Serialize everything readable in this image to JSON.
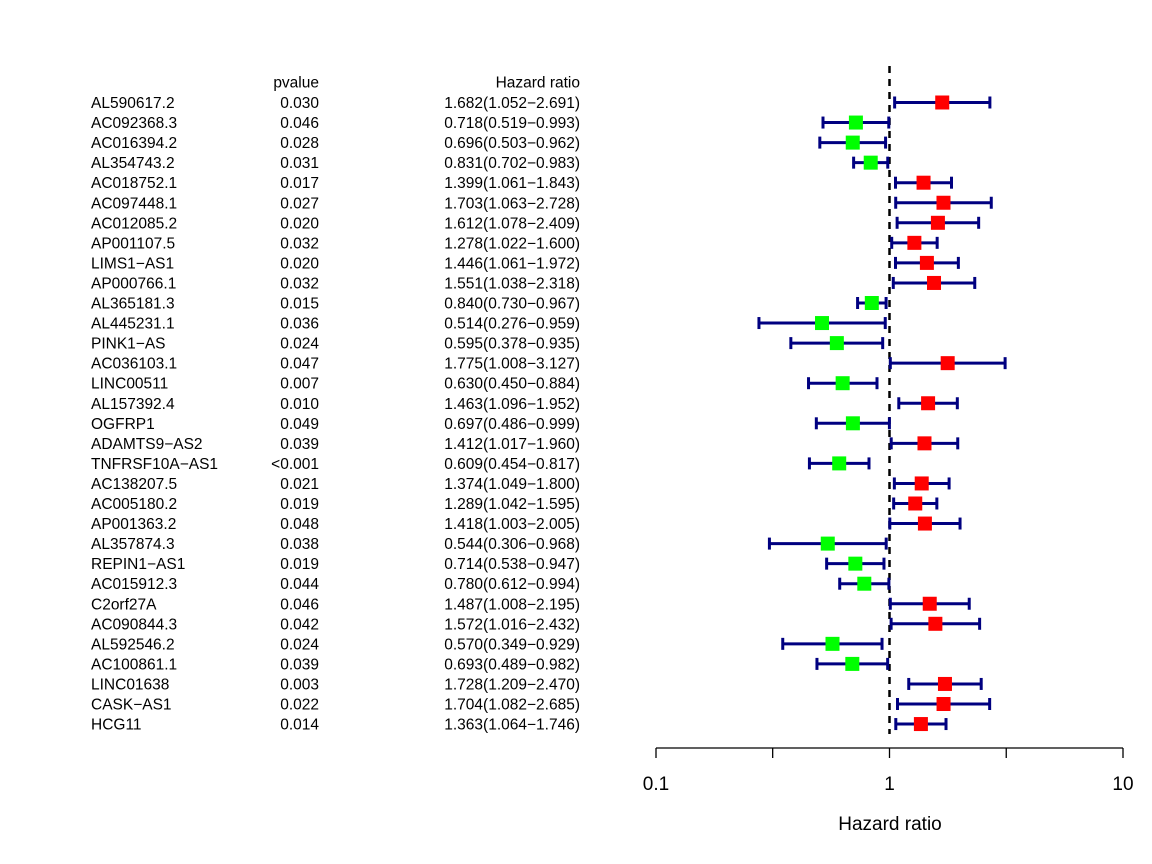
{
  "chart_data": {
    "type": "forest",
    "xscale": "log10",
    "xlim": [
      0.1,
      10
    ],
    "xlabel": "Hazard ratio",
    "reference_line": 1,
    "header": {
      "pvalue": "pvalue",
      "hr": "Hazard ratio"
    },
    "xticks": [
      {
        "value": 0.1,
        "label": "0.1"
      },
      {
        "value": 0.316,
        "label": ""
      },
      {
        "value": 1,
        "label": "1"
      },
      {
        "value": 3.162,
        "label": ""
      },
      {
        "value": 10,
        "label": "10"
      }
    ],
    "colors": {
      "risk": "#ff0000",
      "protective": "#00ff00",
      "ci": "#000080"
    },
    "rows": [
      {
        "gene": "AL590617.2",
        "pvalue": "0.030",
        "hr_text": "1.682(1.052−2.691)",
        "hr": 1.682,
        "low": 1.052,
        "high": 2.691
      },
      {
        "gene": "AC092368.3",
        "pvalue": "0.046",
        "hr_text": "0.718(0.519−0.993)",
        "hr": 0.718,
        "low": 0.519,
        "high": 0.993
      },
      {
        "gene": "AC016394.2",
        "pvalue": "0.028",
        "hr_text": "0.696(0.503−0.962)",
        "hr": 0.696,
        "low": 0.503,
        "high": 0.962
      },
      {
        "gene": "AL354743.2",
        "pvalue": "0.031",
        "hr_text": "0.831(0.702−0.983)",
        "hr": 0.831,
        "low": 0.702,
        "high": 0.983
      },
      {
        "gene": "AC018752.1",
        "pvalue": "0.017",
        "hr_text": "1.399(1.061−1.843)",
        "hr": 1.399,
        "low": 1.061,
        "high": 1.843
      },
      {
        "gene": "AC097448.1",
        "pvalue": "0.027",
        "hr_text": "1.703(1.063−2.728)",
        "hr": 1.703,
        "low": 1.063,
        "high": 2.728
      },
      {
        "gene": "AC012085.2",
        "pvalue": "0.020",
        "hr_text": "1.612(1.078−2.409)",
        "hr": 1.612,
        "low": 1.078,
        "high": 2.409
      },
      {
        "gene": "AP001107.5",
        "pvalue": "0.032",
        "hr_text": "1.278(1.022−1.600)",
        "hr": 1.278,
        "low": 1.022,
        "high": 1.6
      },
      {
        "gene": "LIMS1−AS1",
        "pvalue": "0.020",
        "hr_text": "1.446(1.061−1.972)",
        "hr": 1.446,
        "low": 1.061,
        "high": 1.972
      },
      {
        "gene": "AP000766.1",
        "pvalue": "0.032",
        "hr_text": "1.551(1.038−2.318)",
        "hr": 1.551,
        "low": 1.038,
        "high": 2.318
      },
      {
        "gene": "AL365181.3",
        "pvalue": "0.015",
        "hr_text": "0.840(0.730−0.967)",
        "hr": 0.84,
        "low": 0.73,
        "high": 0.967
      },
      {
        "gene": "AL445231.1",
        "pvalue": "0.036",
        "hr_text": "0.514(0.276−0.959)",
        "hr": 0.514,
        "low": 0.276,
        "high": 0.959
      },
      {
        "gene": "PINK1−AS",
        "pvalue": "0.024",
        "hr_text": "0.595(0.378−0.935)",
        "hr": 0.595,
        "low": 0.378,
        "high": 0.935
      },
      {
        "gene": "AC036103.1",
        "pvalue": "0.047",
        "hr_text": "1.775(1.008−3.127)",
        "hr": 1.775,
        "low": 1.008,
        "high": 3.127
      },
      {
        "gene": "LINC00511",
        "pvalue": "0.007",
        "hr_text": "0.630(0.450−0.884)",
        "hr": 0.63,
        "low": 0.45,
        "high": 0.884
      },
      {
        "gene": "AL157392.4",
        "pvalue": "0.010",
        "hr_text": "1.463(1.096−1.952)",
        "hr": 1.463,
        "low": 1.096,
        "high": 1.952
      },
      {
        "gene": "OGFRP1",
        "pvalue": "0.049",
        "hr_text": "0.697(0.486−0.999)",
        "hr": 0.697,
        "low": 0.486,
        "high": 0.999
      },
      {
        "gene": "ADAMTS9−AS2",
        "pvalue": "0.039",
        "hr_text": "1.412(1.017−1.960)",
        "hr": 1.412,
        "low": 1.017,
        "high": 1.96
      },
      {
        "gene": "TNFRSF10A−AS1",
        "pvalue": "<0.001",
        "hr_text": "0.609(0.454−0.817)",
        "hr": 0.609,
        "low": 0.454,
        "high": 0.817
      },
      {
        "gene": "AC138207.5",
        "pvalue": "0.021",
        "hr_text": "1.374(1.049−1.800)",
        "hr": 1.374,
        "low": 1.049,
        "high": 1.8
      },
      {
        "gene": "AC005180.2",
        "pvalue": "0.019",
        "hr_text": "1.289(1.042−1.595)",
        "hr": 1.289,
        "low": 1.042,
        "high": 1.595
      },
      {
        "gene": "AP001363.2",
        "pvalue": "0.048",
        "hr_text": "1.418(1.003−2.005)",
        "hr": 1.418,
        "low": 1.003,
        "high": 2.005
      },
      {
        "gene": "AL357874.3",
        "pvalue": "0.038",
        "hr_text": "0.544(0.306−0.968)",
        "hr": 0.544,
        "low": 0.306,
        "high": 0.968
      },
      {
        "gene": "REPIN1−AS1",
        "pvalue": "0.019",
        "hr_text": "0.714(0.538−0.947)",
        "hr": 0.714,
        "low": 0.538,
        "high": 0.947
      },
      {
        "gene": "AC015912.3",
        "pvalue": "0.044",
        "hr_text": "0.780(0.612−0.994)",
        "hr": 0.78,
        "low": 0.612,
        "high": 0.994
      },
      {
        "gene": "C2orf27A",
        "pvalue": "0.046",
        "hr_text": "1.487(1.008−2.195)",
        "hr": 1.487,
        "low": 1.008,
        "high": 2.195
      },
      {
        "gene": "AC090844.3",
        "pvalue": "0.042",
        "hr_text": "1.572(1.016−2.432)",
        "hr": 1.572,
        "low": 1.016,
        "high": 2.432
      },
      {
        "gene": "AL592546.2",
        "pvalue": "0.024",
        "hr_text": "0.570(0.349−0.929)",
        "hr": 0.57,
        "low": 0.349,
        "high": 0.929
      },
      {
        "gene": "AC100861.1",
        "pvalue": "0.039",
        "hr_text": "0.693(0.489−0.982)",
        "hr": 0.693,
        "low": 0.489,
        "high": 0.982
      },
      {
        "gene": "LINC01638",
        "pvalue": "0.003",
        "hr_text": "1.728(1.209−2.470)",
        "hr": 1.728,
        "low": 1.209,
        "high": 2.47
      },
      {
        "gene": "CASK−AS1",
        "pvalue": "0.022",
        "hr_text": "1.704(1.082−2.685)",
        "hr": 1.704,
        "low": 1.082,
        "high": 2.685
      },
      {
        "gene": "HCG11",
        "pvalue": "0.014",
        "hr_text": "1.363(1.064−1.746)",
        "hr": 1.363,
        "low": 1.064,
        "high": 1.746
      }
    ]
  }
}
